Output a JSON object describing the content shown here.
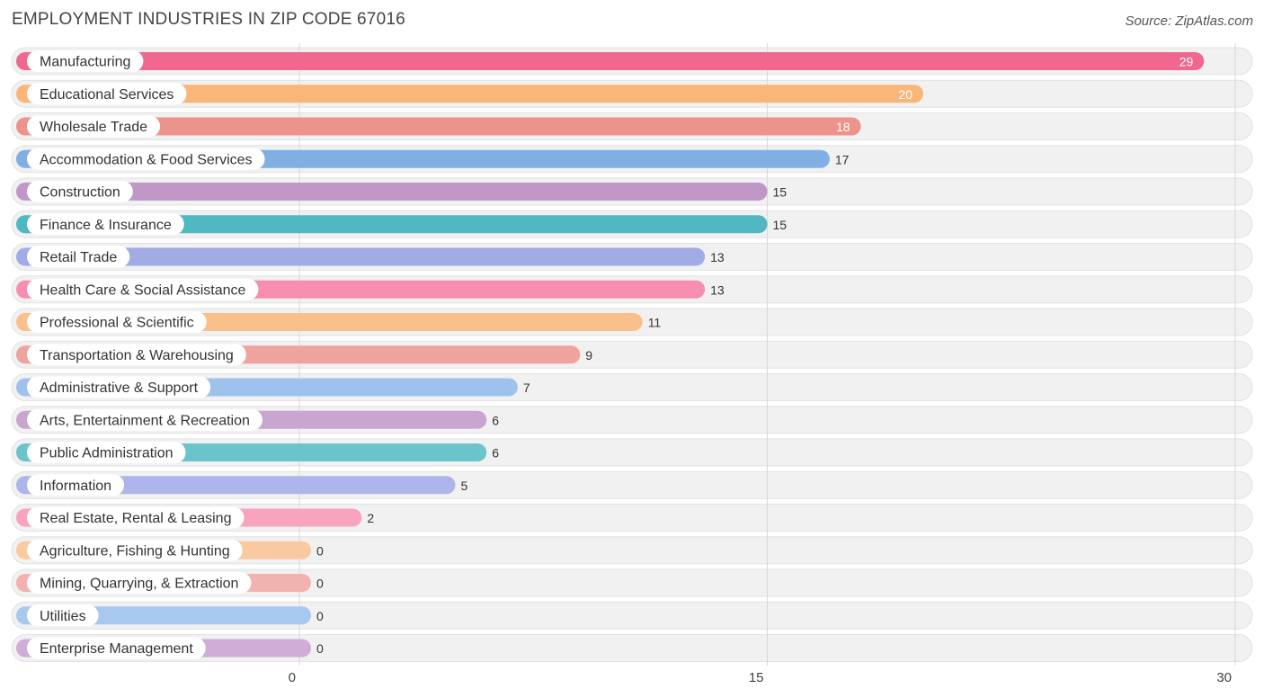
{
  "title": "EMPLOYMENT INDUSTRIES IN ZIP CODE 67016",
  "source": "Source: ZipAtlas.com",
  "chart_data": {
    "type": "bar",
    "orientation": "horizontal",
    "title": "EMPLOYMENT INDUSTRIES IN ZIP CODE 67016",
    "xlabel": "",
    "ylabel": "",
    "xlim": [
      0,
      30
    ],
    "ticks": [
      0,
      15,
      30
    ],
    "categories": [
      "Manufacturing",
      "Educational Services",
      "Wholesale Trade",
      "Accommodation & Food Services",
      "Construction",
      "Finance & Insurance",
      "Retail Trade",
      "Health Care & Social Assistance",
      "Professional & Scientific",
      "Transportation & Warehousing",
      "Administrative & Support",
      "Arts, Entertainment & Recreation",
      "Public Administration",
      "Information",
      "Real Estate, Rental & Leasing",
      "Agriculture, Fishing & Hunting",
      "Mining, Quarrying, & Extraction",
      "Utilities",
      "Enterprise Management"
    ],
    "values": [
      29,
      20,
      18,
      17,
      15,
      15,
      13,
      13,
      11,
      9,
      7,
      6,
      6,
      5,
      2,
      0,
      0,
      0,
      0
    ],
    "colors": [
      "#f06890",
      "#f9b678",
      "#ec948c",
      "#7fafe3",
      "#bf98c8",
      "#4fb8c2",
      "#a1abe6",
      "#f78eb0",
      "#fac08b",
      "#eea39f",
      "#9ec2ec",
      "#c9a6d0",
      "#6cc4cb",
      "#adb5ea",
      "#f9a4bf",
      "#fbc9a0",
      "#f2b3b0",
      "#a9c8f0",
      "#cfadd6"
    ]
  }
}
